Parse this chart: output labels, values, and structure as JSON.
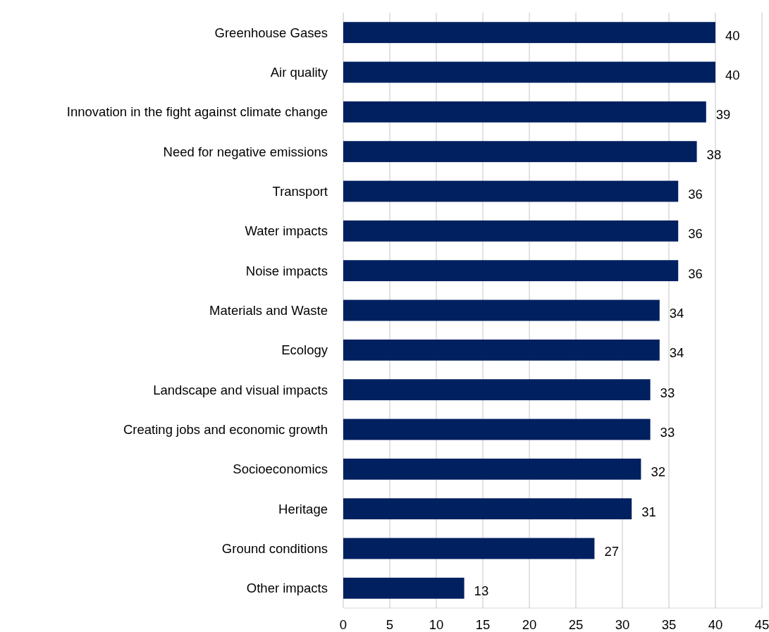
{
  "chart_data": {
    "type": "bar",
    "orientation": "horizontal",
    "categories": [
      "Greenhouse Gases",
      "Air quality",
      "Innovation in the fight against climate change",
      "Need for negative emissions",
      "Transport",
      "Water impacts",
      "Noise impacts",
      "Materials and Waste",
      "Ecology",
      "Landscape and visual impacts",
      "Creating jobs and economic growth",
      "Socioeconomics",
      "Heritage",
      "Ground conditions",
      "Other impacts"
    ],
    "values": [
      40,
      40,
      39,
      38,
      36,
      36,
      36,
      34,
      34,
      33,
      33,
      32,
      31,
      27,
      13
    ],
    "color": "#002060",
    "xlim": [
      0,
      45
    ],
    "xticks": [
      0,
      5,
      10,
      15,
      20,
      25,
      30,
      35,
      40,
      45
    ],
    "grid": "x",
    "data_labels": true
  }
}
